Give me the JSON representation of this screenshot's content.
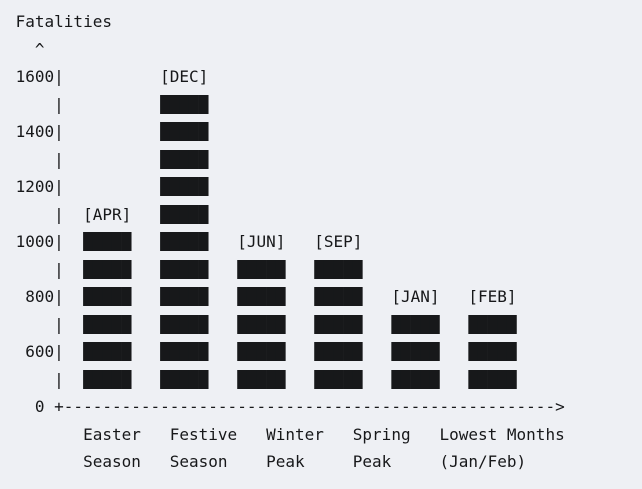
{
  "colors": {
    "background": "#eef0f4",
    "ink": "#17181a",
    "bar_fill": "#0c0d0f"
  },
  "chart_data": {
    "type": "bar",
    "title": "Fatalities",
    "ylabel": "Fatalities",
    "xlabel": "",
    "y_axis_arrow": "^",
    "x_axis_arrow": ">",
    "yticks": [
      0,
      600,
      800,
      1000,
      1200,
      1400,
      1600
    ],
    "ylim": [
      0,
      1700
    ],
    "grid": false,
    "legend": "none",
    "categories": [
      "Easter Season",
      "Festive Season",
      "Winter Peak",
      "Spring Peak",
      "Lowest Months (Jan/Feb)"
    ],
    "bars": [
      {
        "month_label": "[APR]",
        "month": "APR",
        "value": 1000,
        "group": "Easter Season",
        "block_rows": 6
      },
      {
        "month_label": "[DEC]",
        "month": "DEC",
        "value": 1500,
        "group": "Festive Season",
        "block_rows": 11
      },
      {
        "month_label": "[JUN]",
        "month": "JUN",
        "value": 900,
        "group": "Winter Peak",
        "block_rows": 5
      },
      {
        "month_label": "[SEP]",
        "month": "SEP",
        "value": 900,
        "group": "Spring Peak",
        "block_rows": 5
      },
      {
        "month_label": "[JAN]",
        "month": "JAN",
        "value": 700,
        "group": "Lowest Months (Jan/Feb)",
        "block_rows": 3
      },
      {
        "month_label": "[FEB]",
        "month": "FEB",
        "value": 700,
        "group": "Lowest Months (Jan/Feb)",
        "block_rows": 3
      }
    ],
    "x_group_labels_line1": [
      "Easter",
      "Festive",
      "Winter",
      "Spring",
      "Lowest Months"
    ],
    "x_group_labels_line2": [
      "Season",
      "Season",
      "Peak",
      "Peak",
      "(Jan/Feb)"
    ]
  },
  "ascii_lines": [
    " Fatalities",
    "   ^",
    " 1600|          [DEC]",
    "     |          █████",
    " 1400|          █████",
    "     |          █████",
    " 1200|          █████",
    "     |  [APR]   █████",
    " 1000|  █████   █████   [JUN]   [SEP]",
    "     |  █████   █████   █████   █████",
    "  800|  █████   █████   █████   █████   [JAN]   [FEB]",
    "     |  █████   █████   █████   █████   █████   █████",
    "  600|  █████   █████   █████   █████   █████   █████",
    "     |  █████   █████   █████   █████   █████   █████",
    "   0 +--------------------------------------------------->",
    "        Easter   Festive   Winter   Spring   Lowest Months",
    "        Season   Season    Peak     Peak     (Jan/Feb)"
  ]
}
